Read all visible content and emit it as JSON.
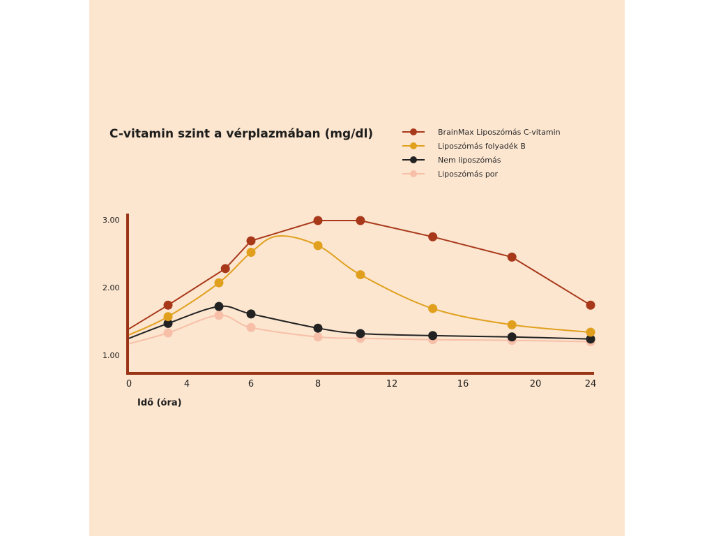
{
  "chart_data": {
    "type": "line",
    "title": "C-vitamin szint a vérplazmában (mg/dl)",
    "xlabel": "Idő (óra)",
    "ylabel": "",
    "x_ticks": [
      0,
      4,
      6,
      8,
      12,
      16,
      20,
      24
    ],
    "y_ticks": [
      "1.00",
      "2.00",
      "3.00"
    ],
    "ylim": [
      0.8,
      3.1
    ],
    "legend_position": "top-right",
    "grid": false,
    "series": [
      {
        "name": "BrainMax Liposzómás C-vitamin",
        "color": "#a8381a",
        "x": [
          0,
          2.7,
          5.2,
          6.7,
          8.3,
          10.8,
          13.1
        ],
        "y": [
          1.39,
          1.74,
          2.28,
          2.69,
          2.99,
          2.99,
          2.75
        ],
        "points": [
          {
            "x": 2.7,
            "y": 1.74
          },
          {
            "x": 5.2,
            "y": 2.28
          },
          {
            "x": 6.0,
            "y": 2.69
          },
          {
            "x": 8.0,
            "y": 2.99
          },
          {
            "x": 10.3,
            "y": 2.99
          },
          {
            "x": 14.3,
            "y": 2.75
          },
          {
            "x": 18.7,
            "y": 2.45
          },
          {
            "x": 24,
            "y": 1.74
          }
        ]
      },
      {
        "name": "Liposzómás folyadék B",
        "color": "#e0a01e",
        "points": [
          {
            "x": 0,
            "y": 1.3
          },
          {
            "x": 2.7,
            "y": 1.57
          },
          {
            "x": 5.0,
            "y": 2.07
          },
          {
            "x": 6.0,
            "y": 2.52
          },
          {
            "x": 8.0,
            "y": 2.62
          },
          {
            "x": 10.3,
            "y": 2.19
          },
          {
            "x": 14.3,
            "y": 1.69
          },
          {
            "x": 18.7,
            "y": 1.45
          },
          {
            "x": 24,
            "y": 1.34
          }
        ],
        "peak": {
          "x": 6.8,
          "y": 2.76
        }
      },
      {
        "name": "Nem liposzómás",
        "color": "#222222",
        "points": [
          {
            "x": 0,
            "y": 1.25
          },
          {
            "x": 2.7,
            "y": 1.47
          },
          {
            "x": 5.0,
            "y": 1.72
          },
          {
            "x": 6.0,
            "y": 1.61
          },
          {
            "x": 8.0,
            "y": 1.4
          },
          {
            "x": 10.3,
            "y": 1.32
          },
          {
            "x": 14.3,
            "y": 1.29
          },
          {
            "x": 18.7,
            "y": 1.27
          },
          {
            "x": 24,
            "y": 1.24
          }
        ]
      },
      {
        "name": "Liposzómás por",
        "color": "#f7bfa8",
        "points": [
          {
            "x": 0,
            "y": 1.17
          },
          {
            "x": 2.7,
            "y": 1.33
          },
          {
            "x": 5.0,
            "y": 1.59
          },
          {
            "x": 6.0,
            "y": 1.41
          },
          {
            "x": 8.0,
            "y": 1.27
          },
          {
            "x": 10.3,
            "y": 1.25
          },
          {
            "x": 14.3,
            "y": 1.23
          },
          {
            "x": 18.7,
            "y": 1.22
          },
          {
            "x": 24,
            "y": 1.2
          }
        ]
      }
    ]
  }
}
